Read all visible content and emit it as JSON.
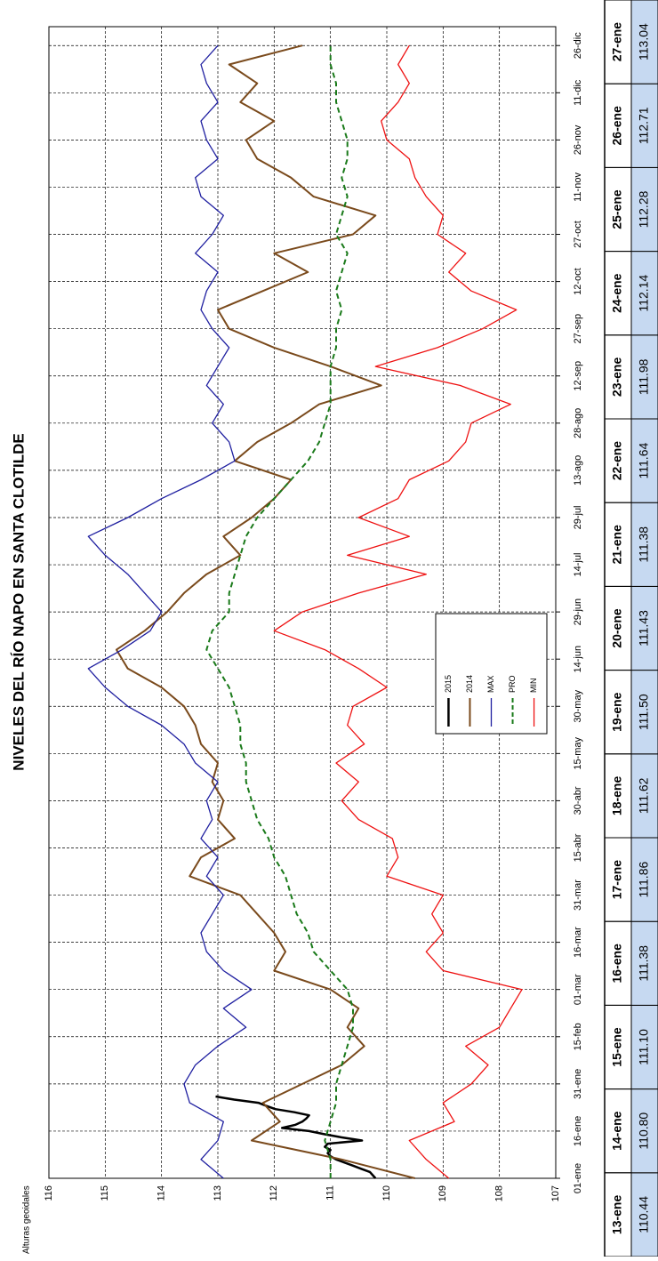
{
  "chart_data": {
    "type": "line",
    "title": "NIVELES DEL RÍO NAPO EN SANTA CLOTILDE",
    "y_label": "Alturas geoidales",
    "ylim": [
      107,
      116
    ],
    "yticks": [
      107,
      108,
      109,
      110,
      111,
      112,
      113,
      114,
      115,
      116
    ],
    "xlim": [
      0,
      366
    ],
    "xticks": [
      {
        "value": 0,
        "label": "01-ene"
      },
      {
        "value": 15,
        "label": "16-ene"
      },
      {
        "value": 30,
        "label": "31-ene"
      },
      {
        "value": 45,
        "label": "15-feb"
      },
      {
        "value": 60,
        "label": "01-mar"
      },
      {
        "value": 75,
        "label": "16-mar"
      },
      {
        "value": 90,
        "label": "31-mar"
      },
      {
        "value": 105,
        "label": "15-abr"
      },
      {
        "value": 120,
        "label": "30-abr"
      },
      {
        "value": 135,
        "label": "15-may"
      },
      {
        "value": 150,
        "label": "30-may"
      },
      {
        "value": 165,
        "label": "14-jun"
      },
      {
        "value": 180,
        "label": "29-jun"
      },
      {
        "value": 195,
        "label": "14-jul"
      },
      {
        "value": 210,
        "label": "29-jul"
      },
      {
        "value": 225,
        "label": "13-ago"
      },
      {
        "value": 240,
        "label": "28-ago"
      },
      {
        "value": 255,
        "label": "12-sep"
      },
      {
        "value": 270,
        "label": "27-sep"
      },
      {
        "value": 285,
        "label": "12-oct"
      },
      {
        "value": 300,
        "label": "27-oct"
      },
      {
        "value": 315,
        "label": "11-nov"
      },
      {
        "value": 330,
        "label": "26-nov"
      },
      {
        "value": 345,
        "label": "11-dic"
      },
      {
        "value": 360,
        "label": "26-dic"
      }
    ],
    "grid": true,
    "legend": "center",
    "series": [
      {
        "name": "2015",
        "color": "#000000",
        "dash": false,
        "width": 2.5,
        "x": [
          0,
          1,
          2,
          3,
          4,
          5,
          6,
          7,
          8,
          9,
          10,
          11,
          12,
          13,
          14,
          15,
          16,
          17,
          18,
          19,
          20,
          21,
          22,
          23,
          24,
          25,
          26
        ],
        "values": [
          110.2,
          110.25,
          110.3,
          110.45,
          110.6,
          110.75,
          110.9,
          111.0,
          111.05,
          111.0,
          111.1,
          111.05,
          110.44,
          110.8,
          111.1,
          111.38,
          111.86,
          111.62,
          111.5,
          111.43,
          111.38,
          111.64,
          111.98,
          112.14,
          112.28,
          112.71,
          113.04
        ]
      },
      {
        "name": "2014",
        "color": "#7a4a1c",
        "dash": false,
        "width": 2,
        "x": [
          0,
          6,
          12,
          18,
          24,
          30,
          36,
          42,
          48,
          54,
          60,
          66,
          72,
          78,
          84,
          90,
          96,
          102,
          108,
          114,
          120,
          126,
          132,
          138,
          144,
          150,
          156,
          162,
          168,
          174,
          180,
          186,
          192,
          198,
          204,
          210,
          216,
          222,
          228,
          234,
          240,
          246,
          252,
          258,
          264,
          270,
          276,
          282,
          288,
          294,
          300,
          306,
          312,
          318,
          324,
          330,
          336,
          342,
          348,
          354,
          360
        ],
        "values": [
          109.5,
          110.8,
          112.4,
          111.9,
          112.2,
          111.5,
          110.8,
          110.4,
          110.7,
          110.5,
          111.0,
          112.0,
          111.8,
          112.0,
          112.3,
          112.6,
          113.5,
          113.3,
          112.7,
          113.0,
          112.9,
          113.1,
          113.0,
          113.3,
          113.4,
          113.6,
          114.0,
          114.6,
          114.8,
          114.3,
          113.9,
          113.6,
          113.2,
          112.6,
          112.9,
          112.4,
          112.0,
          111.7,
          112.7,
          112.3,
          111.7,
          111.2,
          110.1,
          111.0,
          112.0,
          112.8,
          113.0,
          112.2,
          111.4,
          112.0,
          110.6,
          110.2,
          111.3,
          111.7,
          112.3,
          112.5,
          112.0,
          112.6,
          112.3,
          112.8,
          111.5
        ]
      },
      {
        "name": "MAX",
        "color": "#1f1fa0",
        "dash": false,
        "width": 1.3,
        "x": [
          0,
          6,
          12,
          18,
          24,
          30,
          36,
          42,
          48,
          54,
          60,
          66,
          72,
          78,
          84,
          90,
          96,
          102,
          108,
          114,
          120,
          126,
          132,
          138,
          144,
          150,
          156,
          162,
          168,
          174,
          180,
          186,
          192,
          198,
          204,
          210,
          216,
          222,
          228,
          234,
          240,
          246,
          252,
          258,
          264,
          270,
          276,
          282,
          288,
          294,
          300,
          306,
          312,
          318,
          324,
          330,
          336,
          342,
          348,
          354,
          360
        ],
        "values": [
          112.9,
          113.3,
          113.0,
          112.9,
          113.5,
          113.6,
          113.4,
          113.0,
          112.5,
          112.9,
          112.4,
          112.9,
          113.2,
          113.3,
          113.1,
          112.9,
          113.2,
          113.0,
          113.3,
          113.1,
          113.2,
          113.0,
          113.4,
          113.6,
          114.0,
          114.6,
          115.0,
          115.3,
          114.7,
          114.2,
          114.0,
          114.3,
          114.6,
          115.0,
          115.3,
          114.6,
          114.0,
          113.3,
          112.7,
          112.8,
          113.1,
          112.9,
          113.2,
          113.0,
          112.8,
          113.1,
          113.3,
          113.2,
          113.0,
          113.4,
          113.1,
          112.9,
          113.3,
          113.4,
          113.0,
          113.2,
          113.3,
          113.0,
          113.2,
          113.3,
          113.0
        ]
      },
      {
        "name": "PRO",
        "color": "#1a7a1a",
        "dash": true,
        "width": 2,
        "x": [
          0,
          6,
          12,
          18,
          24,
          30,
          36,
          42,
          48,
          54,
          60,
          66,
          72,
          78,
          84,
          90,
          96,
          102,
          108,
          114,
          120,
          126,
          132,
          138,
          144,
          150,
          156,
          162,
          168,
          174,
          180,
          186,
          192,
          198,
          204,
          210,
          216,
          222,
          228,
          234,
          240,
          246,
          252,
          258,
          264,
          270,
          276,
          282,
          288,
          294,
          300,
          306,
          312,
          318,
          324,
          330,
          336,
          342,
          348,
          354,
          360
        ],
        "values": [
          111.0,
          111.0,
          111.1,
          111.0,
          110.9,
          110.9,
          110.8,
          110.7,
          110.6,
          110.6,
          110.7,
          111.0,
          111.3,
          111.4,
          111.6,
          111.7,
          111.8,
          112.0,
          112.1,
          112.3,
          112.4,
          112.5,
          112.5,
          112.6,
          112.6,
          112.7,
          112.8,
          113.0,
          113.2,
          113.1,
          112.8,
          112.8,
          112.7,
          112.6,
          112.5,
          112.3,
          112.0,
          111.7,
          111.4,
          111.2,
          111.1,
          111.0,
          111.0,
          111.0,
          110.9,
          110.9,
          110.8,
          110.9,
          110.8,
          110.7,
          110.9,
          110.8,
          110.7,
          110.8,
          110.7,
          110.7,
          110.8,
          110.9,
          110.9,
          111.0,
          111.0
        ]
      },
      {
        "name": "MIN",
        "color": "#ee1111",
        "dash": false,
        "width": 1.3,
        "x": [
          0,
          6,
          12,
          18,
          24,
          30,
          36,
          42,
          48,
          54,
          60,
          66,
          72,
          78,
          84,
          90,
          96,
          102,
          108,
          114,
          120,
          126,
          132,
          138,
          144,
          150,
          156,
          162,
          168,
          174,
          180,
          186,
          192,
          198,
          204,
          210,
          216,
          222,
          228,
          234,
          240,
          246,
          252,
          258,
          264,
          270,
          276,
          282,
          288,
          294,
          300,
          306,
          312,
          318,
          324,
          330,
          336,
          342,
          348,
          354,
          360
        ],
        "values": [
          108.9,
          109.3,
          109.6,
          108.8,
          109.0,
          108.5,
          108.2,
          108.6,
          108.0,
          107.8,
          107.6,
          109.0,
          109.3,
          109.0,
          109.2,
          109.0,
          110.0,
          109.8,
          109.9,
          110.5,
          110.8,
          110.5,
          110.9,
          110.4,
          110.7,
          110.6,
          110.0,
          110.5,
          111.1,
          112.0,
          111.5,
          110.5,
          109.3,
          110.7,
          109.6,
          110.5,
          109.8,
          109.6,
          108.9,
          108.6,
          108.5,
          107.8,
          108.7,
          110.2,
          109.1,
          108.3,
          107.7,
          108.5,
          108.9,
          108.6,
          109.1,
          109.0,
          109.3,
          109.5,
          109.6,
          110.0,
          110.1,
          109.8,
          109.6,
          109.8,
          109.6
        ]
      }
    ]
  },
  "table": {
    "rows": [
      [
        "13-ene",
        "110.44"
      ],
      [
        "14-ene",
        "110.80"
      ],
      [
        "15-ene",
        "111.10"
      ],
      [
        "16-ene",
        "111.38"
      ],
      [
        "17-ene",
        "111.86"
      ],
      [
        "18-ene",
        "111.62"
      ],
      [
        "19-ene",
        "111.50"
      ],
      [
        "20-ene",
        "111.43"
      ],
      [
        "21-ene",
        "111.38"
      ],
      [
        "22-ene",
        "111.64"
      ],
      [
        "23-ene",
        "111.98"
      ],
      [
        "24-ene",
        "112.14"
      ],
      [
        "25-ene",
        "112.28"
      ],
      [
        "26-ene",
        "112.71"
      ],
      [
        "27-ene",
        "113.04"
      ]
    ]
  }
}
